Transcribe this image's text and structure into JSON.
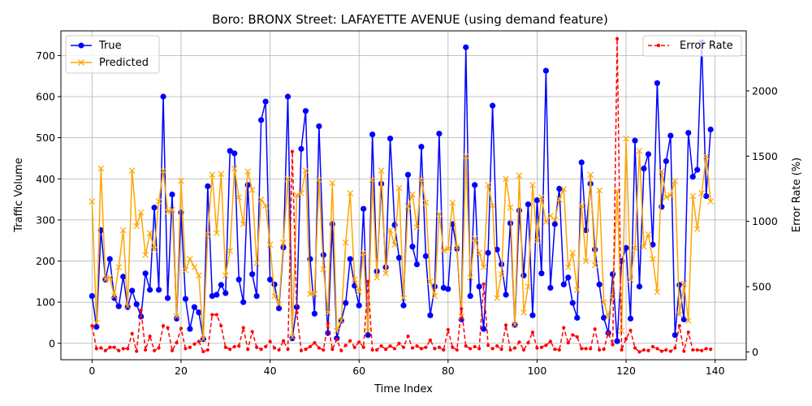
{
  "chart_data": {
    "type": "line",
    "title": "Boro: BRONX Street: LAFAYETTE AVENUE (using demand feature)",
    "xlabel": "Time Index",
    "ylabel": "Traffic Volume",
    "y2label": "Error Rate (%)",
    "xlim": [
      -7,
      147
    ],
    "ylim": [
      -40,
      760
    ],
    "y2lim": [
      -60,
      2460
    ],
    "xticks": [
      0,
      20,
      40,
      60,
      80,
      100,
      120,
      140
    ],
    "yticks": [
      0,
      100,
      200,
      300,
      400,
      500,
      600,
      700
    ],
    "y2ticks": [
      0,
      500,
      1000,
      1500,
      2000
    ],
    "grid": true,
    "legend_left": "upper-left",
    "legend_right": "upper-right",
    "colors": {
      "true": "#0000ff",
      "predicted": "#ffa500",
      "error": "#ff0000"
    },
    "series": [
      {
        "name": "True",
        "axis": "left",
        "color": "#0000ff",
        "marker": "circle",
        "values": [
          115,
          40,
          275,
          155,
          205,
          110,
          90,
          162,
          88,
          128,
          95,
          65,
          170,
          130,
          330,
          130,
          600,
          110,
          362,
          60,
          318,
          108,
          35,
          88,
          75,
          10,
          382,
          115,
          118,
          142,
          122,
          468,
          462,
          155,
          100,
          385,
          168,
          115,
          543,
          588,
          155,
          143,
          85,
          233,
          600,
          12,
          88,
          473,
          565,
          205,
          72,
          528,
          215,
          25,
          290,
          12,
          55,
          98,
          205,
          140,
          92,
          327,
          20,
          508,
          175,
          388,
          185,
          498,
          288,
          208,
          92,
          410,
          235,
          192,
          478,
          212,
          68,
          138,
          510,
          135,
          132,
          290,
          230,
          58,
          720,
          115,
          385,
          138,
          35,
          220,
          578,
          228,
          192,
          118,
          292,
          45,
          323,
          165,
          338,
          68,
          348,
          170,
          663,
          135,
          290,
          376,
          143,
          160,
          98,
          62,
          440,
          275,
          388,
          228,
          143,
          62,
          25,
          168,
          5,
          200,
          232,
          60,
          493,
          138,
          425,
          460,
          240,
          633,
          332,
          443,
          505,
          20,
          142,
          58,
          512,
          405,
          422,
          732,
          358,
          520
        ]
      },
      {
        "name": "Predicted",
        "axis": "left",
        "color": "#ffa500",
        "marker": "x",
        "values": [
          345,
          50,
          425,
          155,
          160,
          115,
          185,
          275,
          90,
          420,
          285,
          318,
          215,
          268,
          228,
          345,
          420,
          320,
          325,
          65,
          395,
          178,
          205,
          185,
          165,
          10,
          265,
          410,
          268,
          412,
          165,
          225,
          425,
          355,
          290,
          418,
          373,
          195,
          350,
          335,
          240,
          115,
          95,
          245,
          400,
          15,
          360,
          365,
          420,
          120,
          120,
          398,
          180,
          75,
          390,
          30,
          55,
          245,
          365,
          155,
          125,
          220,
          30,
          398,
          160,
          420,
          170,
          275,
          240,
          378,
          110,
          333,
          362,
          282,
          398,
          342,
          150,
          115,
          315,
          225,
          230,
          342,
          235,
          65,
          455,
          160,
          255,
          220,
          185,
          385,
          335,
          110,
          168,
          400,
          330,
          45,
          408,
          75,
          138,
          385,
          250,
          355,
          295,
          310,
          300,
          350,
          375,
          185,
          220,
          130,
          335,
          200,
          410,
          190,
          372,
          100,
          65,
          115,
          370,
          30,
          498,
          155,
          232,
          468,
          235,
          265,
          205,
          125,
          418,
          355,
          360,
          395,
          70,
          145,
          55,
          358,
          278,
          365,
          455,
          345
        ]
      },
      {
        "name": "Error Rate",
        "axis": "right",
        "color": "#ff0000",
        "values": [
          200,
          25,
          30,
          10,
          35,
          35,
          10,
          25,
          25,
          140,
          5,
          320,
          15,
          120,
          10,
          30,
          200,
          185,
          10,
          70,
          180,
          25,
          35,
          60,
          80,
          2,
          15,
          285,
          285,
          200,
          35,
          20,
          40,
          45,
          185,
          20,
          155,
          35,
          20,
          40,
          80,
          30,
          15,
          85,
          20,
          1535,
          300,
          10,
          20,
          40,
          70,
          30,
          15,
          220,
          20,
          95,
          10,
          50,
          85,
          35,
          75,
          35,
          540,
          15,
          15,
          45,
          20,
          45,
          25,
          65,
          35,
          120,
          30,
          45,
          25,
          35,
          90,
          25,
          35,
          15,
          170,
          35,
          15,
          330,
          45,
          25,
          40,
          25,
          520,
          50,
          25,
          45,
          20,
          205,
          15,
          30,
          75,
          15,
          70,
          150,
          30,
          35,
          50,
          80,
          20,
          15,
          185,
          70,
          130,
          115,
          25,
          25,
          25,
          175,
          15,
          20,
          145,
          55,
          2400,
          15,
          100,
          165,
          30,
          0,
          15,
          10,
          40,
          25,
          5,
          15,
          5,
          30,
          200,
          5,
          150,
          15,
          15,
          10,
          25,
          20
        ]
      }
    ]
  }
}
